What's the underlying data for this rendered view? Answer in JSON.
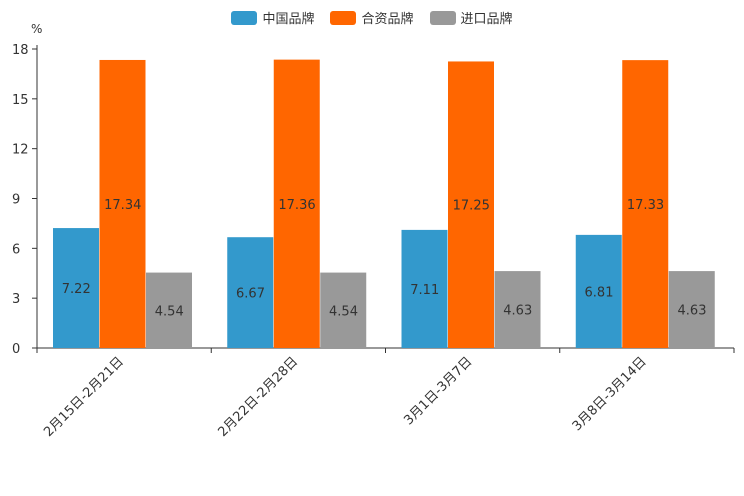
{
  "chart_data": {
    "type": "bar",
    "unit_label": "%",
    "categories": [
      "2月15日-2月21日",
      "2月22日-2月28日",
      "3月1日-3月7日",
      "3月8日-3月14日"
    ],
    "series": [
      {
        "name": "中国品牌",
        "color": "#3399cc",
        "values": [
          7.22,
          6.67,
          7.11,
          6.81
        ]
      },
      {
        "name": "合资品牌",
        "color": "#ff6600",
        "values": [
          17.34,
          17.36,
          17.25,
          17.33
        ]
      },
      {
        "name": "进口品牌",
        "color": "#999999",
        "values": [
          4.54,
          4.54,
          4.63,
          4.63
        ]
      }
    ],
    "ylim": [
      0,
      18
    ],
    "yticks": [
      0,
      3,
      6,
      9,
      12,
      15,
      18
    ],
    "legend_position": "top-center",
    "grid": false
  }
}
